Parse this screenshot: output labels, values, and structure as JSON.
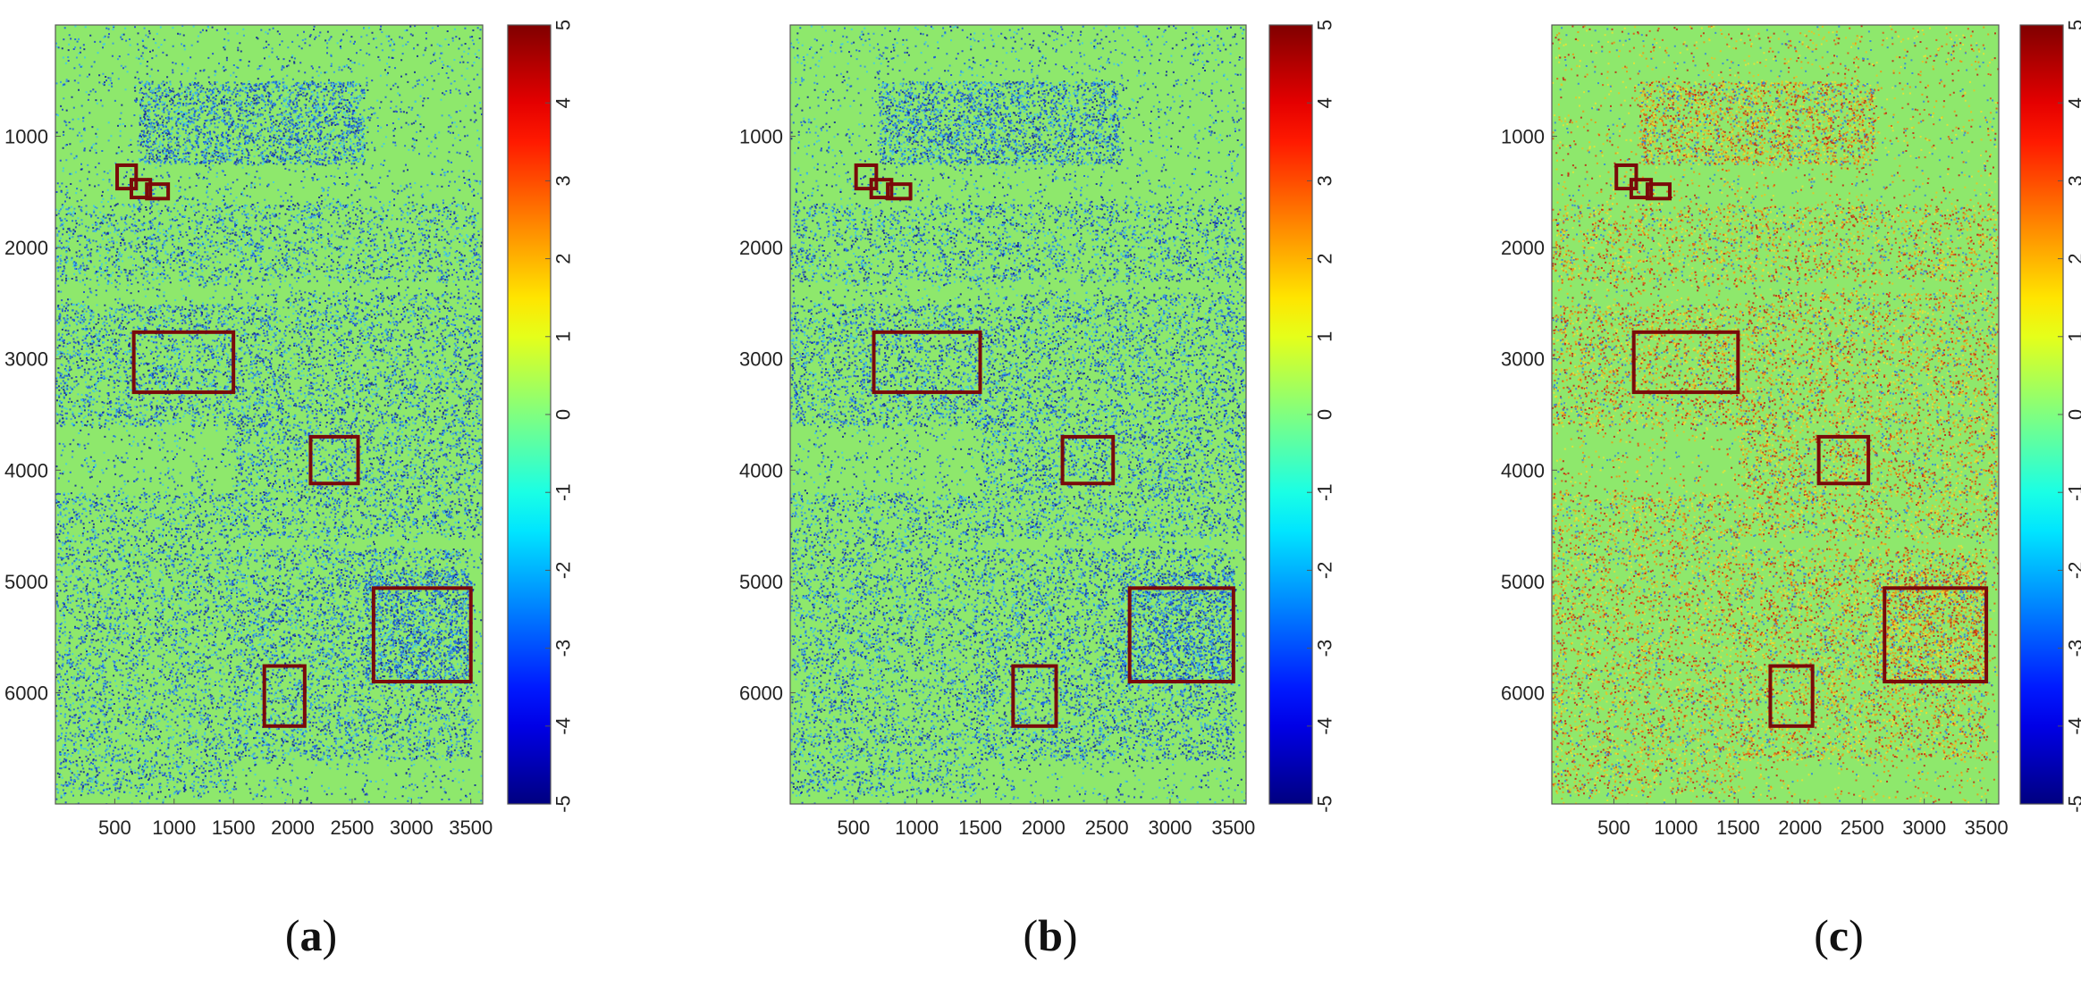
{
  "panels": [
    {
      "id": "a",
      "label_open": "(",
      "label_letter": "a",
      "label_close": ")",
      "dominant": "blue"
    },
    {
      "id": "b",
      "label_open": "(",
      "label_letter": "b",
      "label_close": ")",
      "dominant": "blue"
    },
    {
      "id": "c",
      "label_open": "(",
      "label_letter": "c",
      "label_close": ")",
      "dominant": "red"
    }
  ],
  "axes": {
    "x_ticks": [
      "500",
      "1000",
      "1500",
      "2000",
      "2500",
      "3000",
      "3500"
    ],
    "x_tick_values": [
      500,
      1000,
      1500,
      2000,
      2500,
      3000,
      3500
    ],
    "y_ticks": [
      "1000",
      "2000",
      "3000",
      "4000",
      "5000",
      "6000"
    ],
    "y_tick_values": [
      1000,
      2000,
      3000,
      4000,
      5000,
      6000
    ],
    "x_range": [
      0,
      3600
    ],
    "y_range": [
      0,
      7000
    ]
  },
  "colorbar": {
    "ticks": [
      "5",
      "4",
      "3",
      "2",
      "1",
      "0",
      "-1",
      "-2",
      "-3",
      "-4",
      "-5"
    ],
    "values": [
      5,
      4,
      3,
      2,
      1,
      0,
      -1,
      -2,
      -3,
      -4,
      -5
    ],
    "colormap": "jet",
    "range": [
      -5,
      5
    ]
  },
  "colors": {
    "background_green": "#8ee86c",
    "box": "#7a0a0a",
    "blue_noise": [
      "#1a3fd6",
      "#0a1f9a",
      "#2f8ff0",
      "#3cc8f0",
      "#1560e0"
    ],
    "red_noise": [
      "#f0c020",
      "#f09010",
      "#e05010",
      "#c02010",
      "#f0e030",
      "#3080e0"
    ]
  },
  "highlight_boxes": [
    {
      "x1": 520,
      "x2": 680,
      "y1": 1260,
      "y2": 1470
    },
    {
      "x1": 640,
      "x2": 800,
      "y1": 1390,
      "y2": 1550
    },
    {
      "x1": 770,
      "x2": 950,
      "y1": 1430,
      "y2": 1560
    },
    {
      "x1": 660,
      "x2": 1500,
      "y1": 2760,
      "y2": 3300
    },
    {
      "x1": 2150,
      "x2": 2550,
      "y1": 3700,
      "y2": 4120
    },
    {
      "x1": 2680,
      "x2": 3500,
      "y1": 5060,
      "y2": 5900
    },
    {
      "x1": 1760,
      "x2": 2100,
      "y1": 5760,
      "y2": 6300
    }
  ]
}
